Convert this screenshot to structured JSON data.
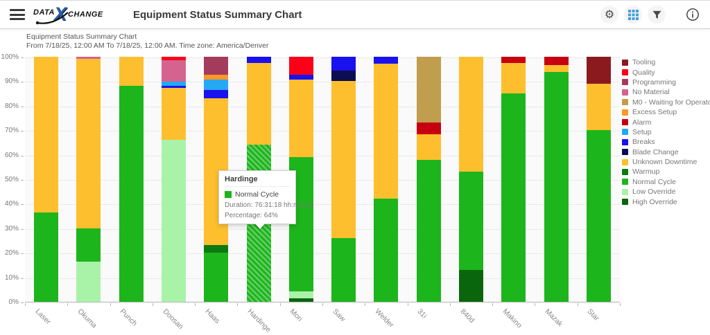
{
  "header": {
    "title": "Equipment Status Summary Chart",
    "logo": {
      "part1": "DATA",
      "x": "X",
      "part2": "CHANGE"
    },
    "icons": {
      "menu": "hamburger-menu",
      "gear_glyph": "⚙",
      "settings": "gear-icon",
      "view": "grid-icon",
      "filter": "funnel-icon",
      "info": "info-circle-icon"
    },
    "accent_color": "#3f9fe0"
  },
  "report": {
    "title": "Equipment Status Summary Chart",
    "subtitle": "From 7/18/25, 12:00 AM To 7/18/25, 12:00 AM. Time zone: America/Denver"
  },
  "tooltip": {
    "title": "Hardinge",
    "series": "Normal Cycle",
    "swatch_color": "#1cb51c",
    "duration": "Duration: 76:31:18 hh:mm:ss",
    "percentage": "Percentage: 64%"
  },
  "chart_data": {
    "type": "bar",
    "stacked": true,
    "unit": "percent",
    "ylim": [
      0,
      100
    ],
    "grid": true,
    "legend_position": "right",
    "x_label_rotation": 45,
    "y_ticks": [
      "0%",
      "10%",
      "20%",
      "30%",
      "40%",
      "50%",
      "60%",
      "70%",
      "80%",
      "90%",
      "100%"
    ],
    "categories": [
      "Laser",
      "Okuma",
      "Punch",
      "Doosan",
      "Haas",
      "Hardinge",
      "Mori",
      "Saw",
      "Welder",
      "31i",
      "840d",
      "Makino",
      "Mazak",
      "Star"
    ],
    "legend": [
      {
        "label": "Tooling",
        "color": "#8b1a1f"
      },
      {
        "label": "Quality",
        "color": "#fb0017"
      },
      {
        "label": "Programming",
        "color": "#a53b5c"
      },
      {
        "label": "No Material",
        "color": "#d4648f"
      },
      {
        "label": "M0 - Waiting for Operator",
        "color": "#c19e4d"
      },
      {
        "label": "Excess Setup",
        "color": "#fd9727"
      },
      {
        "label": "Alarm",
        "color": "#c70011"
      },
      {
        "label": "Setup",
        "color": "#25a9f2"
      },
      {
        "label": "Breaks",
        "color": "#1a12ee"
      },
      {
        "label": "Blade Change",
        "color": "#0d0d52"
      },
      {
        "label": "Unknown Downtime",
        "color": "#fdbf2d"
      },
      {
        "label": "Warmup",
        "color": "#0c7a10"
      },
      {
        "label": "Normal Cycle",
        "color": "#1cb51c"
      },
      {
        "label": "Low Override",
        "color": "#a9f3a9"
      },
      {
        "label": "High Override",
        "color": "#0a660d"
      }
    ],
    "hover": {
      "category": "Hardinge",
      "segment": "Normal Cycle"
    },
    "bars": [
      {
        "category": "Laser",
        "segments": [
          {
            "name": "Normal Cycle",
            "value": 36.5
          },
          {
            "name": "Unknown Downtime",
            "value": 63.5
          }
        ]
      },
      {
        "category": "Okuma",
        "segments": [
          {
            "name": "Low Override",
            "value": 16.5
          },
          {
            "name": "Normal Cycle",
            "value": 13.5
          },
          {
            "name": "Unknown Downtime",
            "value": 69.3
          },
          {
            "name": "No Material",
            "value": 0.7
          }
        ]
      },
      {
        "category": "Punch",
        "segments": [
          {
            "name": "Normal Cycle",
            "value": 88
          },
          {
            "name": "Unknown Downtime",
            "value": 12
          }
        ]
      },
      {
        "category": "Doosan",
        "segments": [
          {
            "name": "Low Override",
            "value": 66
          },
          {
            "name": "Unknown Downtime",
            "value": 21.3
          },
          {
            "name": "Breaks",
            "value": 0.9
          },
          {
            "name": "Setup",
            "value": 1.7
          },
          {
            "name": "No Material",
            "value": 8.6
          },
          {
            "name": "Quality",
            "value": 1.5
          }
        ]
      },
      {
        "category": "Haas",
        "segments": [
          {
            "name": "Normal Cycle",
            "value": 20
          },
          {
            "name": "Warmup",
            "value": 3.3
          },
          {
            "name": "Unknown Downtime",
            "value": 59.7
          },
          {
            "name": "Breaks",
            "value": 3.5
          },
          {
            "name": "Setup",
            "value": 4.1
          },
          {
            "name": "Excess Setup",
            "value": 2.2
          },
          {
            "name": "Programming",
            "value": 7.2
          }
        ]
      },
      {
        "category": "Hardinge",
        "segments": [
          {
            "name": "Normal Cycle",
            "value": 64
          },
          {
            "name": "Unknown Downtime",
            "value": 33.5
          },
          {
            "name": "Breaks",
            "value": 2.5
          }
        ]
      },
      {
        "category": "Mori",
        "segments": [
          {
            "name": "High Override",
            "value": 1.3
          },
          {
            "name": "Low Override",
            "value": 3.0
          },
          {
            "name": "Normal Cycle",
            "value": 54.7
          },
          {
            "name": "Unknown Downtime",
            "value": 31.6
          },
          {
            "name": "Breaks",
            "value": 2.2
          },
          {
            "name": "Quality",
            "value": 7.2
          }
        ]
      },
      {
        "category": "Saw",
        "segments": [
          {
            "name": "Normal Cycle",
            "value": 26
          },
          {
            "name": "Unknown Downtime",
            "value": 64
          },
          {
            "name": "Blade Change",
            "value": 4.5
          },
          {
            "name": "Breaks",
            "value": 5.5
          }
        ]
      },
      {
        "category": "Welder",
        "segments": [
          {
            "name": "Normal Cycle",
            "value": 42
          },
          {
            "name": "Unknown Downtime",
            "value": 55.2
          },
          {
            "name": "Breaks",
            "value": 2.8
          }
        ]
      },
      {
        "category": "31i",
        "segments": [
          {
            "name": "Normal Cycle",
            "value": 58
          },
          {
            "name": "Unknown Downtime",
            "value": 10.5
          },
          {
            "name": "Alarm",
            "value": 4.7
          },
          {
            "name": "M0 - Waiting for Operator",
            "value": 26.8
          }
        ]
      },
      {
        "category": "840d",
        "segments": [
          {
            "name": "High Override",
            "value": 13
          },
          {
            "name": "Normal Cycle",
            "value": 40
          },
          {
            "name": "Unknown Downtime",
            "value": 47
          }
        ]
      },
      {
        "category": "Makino",
        "segments": [
          {
            "name": "Normal Cycle",
            "value": 85
          },
          {
            "name": "Unknown Downtime",
            "value": 12.4
          },
          {
            "name": "Alarm",
            "value": 2.6
          }
        ]
      },
      {
        "category": "Mazak",
        "segments": [
          {
            "name": "Normal Cycle",
            "value": 93.7
          },
          {
            "name": "Unknown Downtime",
            "value": 2.9
          },
          {
            "name": "Alarm",
            "value": 3.4
          }
        ]
      },
      {
        "category": "Star",
        "segments": [
          {
            "name": "Normal Cycle",
            "value": 70
          },
          {
            "name": "Unknown Downtime",
            "value": 19
          },
          {
            "name": "Tooling",
            "value": 11
          }
        ]
      }
    ]
  }
}
